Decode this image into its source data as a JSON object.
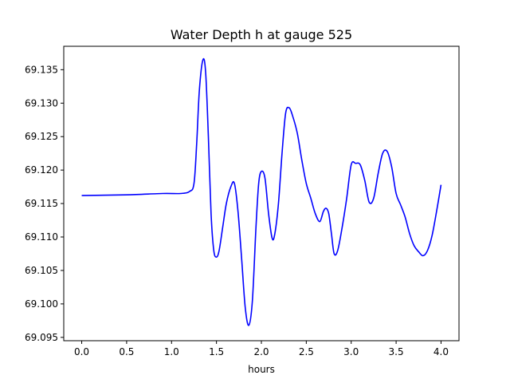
{
  "chart_data": {
    "type": "line",
    "title": "Water Depth h at gauge 525",
    "xlabel": "hours",
    "ylabel": "",
    "xlim": [
      -0.2,
      4.2
    ],
    "ylim": [
      69.0945,
      69.1385
    ],
    "xticks": [
      0.0,
      0.5,
      1.0,
      1.5,
      2.0,
      2.5,
      3.0,
      3.5,
      4.0
    ],
    "xtick_labels": [
      "0.0",
      "0.5",
      "1.0",
      "1.5",
      "2.0",
      "2.5",
      "3.0",
      "3.5",
      "4.0"
    ],
    "yticks": [
      69.095,
      69.1,
      69.105,
      69.11,
      69.115,
      69.12,
      69.125,
      69.13,
      69.135
    ],
    "ytick_labels": [
      "69.095",
      "69.100",
      "69.105",
      "69.110",
      "69.115",
      "69.120",
      "69.125",
      "69.130",
      "69.135"
    ],
    "grid": false,
    "series": [
      {
        "color": "#0000ff",
        "x": [
          0.0,
          0.5,
          0.9,
          1.1,
          1.2,
          1.25,
          1.28,
          1.31,
          1.35,
          1.38,
          1.41,
          1.44,
          1.47,
          1.5,
          1.53,
          1.57,
          1.61,
          1.66,
          1.7,
          1.74,
          1.78,
          1.82,
          1.86,
          1.9,
          1.94,
          1.97,
          2.0,
          2.04,
          2.08,
          2.12,
          2.15,
          2.19,
          2.23,
          2.27,
          2.31,
          2.35,
          2.4,
          2.45,
          2.5,
          2.55,
          2.6,
          2.65,
          2.69,
          2.72,
          2.75,
          2.78,
          2.81,
          2.85,
          2.9,
          2.95,
          3.0,
          3.05,
          3.1,
          3.15,
          3.2,
          3.25,
          3.3,
          3.35,
          3.4,
          3.45,
          3.5,
          3.55,
          3.6,
          3.65,
          3.7,
          3.75,
          3.8,
          3.85,
          3.9,
          3.95,
          4.0
        ],
        "y": [
          69.1162,
          69.1163,
          69.1165,
          69.1165,
          69.1168,
          69.118,
          69.124,
          69.132,
          69.1365,
          69.1345,
          69.125,
          69.1135,
          69.108,
          69.107,
          69.108,
          69.1115,
          69.115,
          69.1175,
          69.118,
          69.1138,
          69.1068,
          69.0995,
          69.0968,
          69.1005,
          69.1115,
          69.118,
          69.1198,
          69.1188,
          69.1135,
          69.1098,
          69.1105,
          69.115,
          69.1225,
          69.1285,
          69.1293,
          69.128,
          69.1255,
          69.1215,
          69.118,
          69.1158,
          69.1135,
          69.1123,
          69.1138,
          69.1143,
          69.1135,
          69.1105,
          69.1075,
          69.108,
          69.1115,
          69.1158,
          69.1208,
          69.121,
          69.1208,
          69.1185,
          69.1152,
          69.1158,
          69.1195,
          69.1225,
          69.1228,
          69.1205,
          69.1165,
          69.1148,
          69.113,
          69.1105,
          69.1087,
          69.1078,
          69.1072,
          69.108,
          69.1102,
          69.1138,
          69.1178
        ]
      }
    ]
  }
}
